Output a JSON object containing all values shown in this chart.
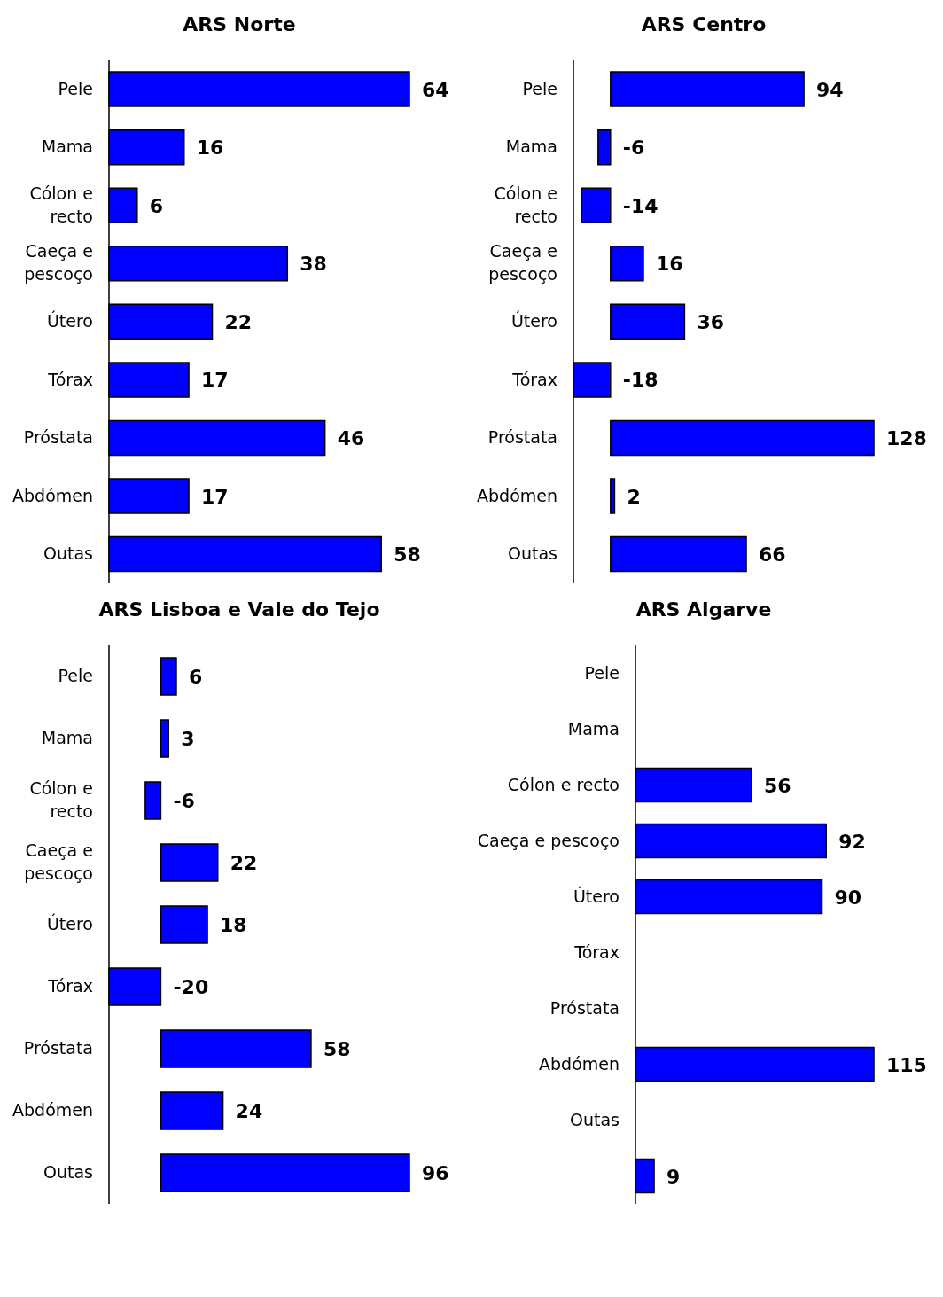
{
  "chart_data": [
    {
      "type": "bar",
      "orientation": "horizontal",
      "title": "ARS Norte",
      "categories": [
        "Pele",
        "Mama",
        "Cólon e recto",
        "Caeça e pescoço",
        "Útero",
        "Tórax",
        "Próstata",
        "Abdómen",
        "Outas"
      ],
      "values": [
        64,
        16,
        6,
        38,
        22,
        17,
        46,
        17,
        58
      ],
      "color": "#0000ff",
      "data_labels": true
    },
    {
      "type": "bar",
      "orientation": "horizontal",
      "title": "ARS Centro",
      "categories": [
        "Pele",
        "Mama",
        "Cólon e recto",
        "Caeça e pescoço",
        "Útero",
        "Tórax",
        "Próstata",
        "Abdómen",
        "Outas"
      ],
      "values": [
        94,
        -6,
        -14,
        16,
        36,
        -18,
        128,
        2,
        66
      ],
      "color": "#0000ff",
      "data_labels": true
    },
    {
      "type": "bar",
      "orientation": "horizontal",
      "title": "ARS Lisboa e Vale do Tejo",
      "categories": [
        "Pele",
        "Mama",
        "Cólon e recto",
        "Caeça e pescoço",
        "Útero",
        "Tórax",
        "Próstata",
        "Abdómen",
        "Outas"
      ],
      "values": [
        6,
        3,
        -6,
        22,
        18,
        -20,
        58,
        24,
        96
      ],
      "color": "#0000ff",
      "data_labels": true
    },
    {
      "type": "bar",
      "orientation": "horizontal",
      "title": "ARS Algarve",
      "categories": [
        "Pele",
        "Mama",
        "Cólon e recto",
        "Caeça e pescoço",
        "Útero",
        "Tórax",
        "Próstata",
        "Abdómen",
        "Outas",
        null
      ],
      "values": [
        null,
        null,
        56,
        92,
        90,
        null,
        null,
        115,
        null,
        9
      ],
      "color": "#0000ff",
      "data_labels": true
    }
  ]
}
